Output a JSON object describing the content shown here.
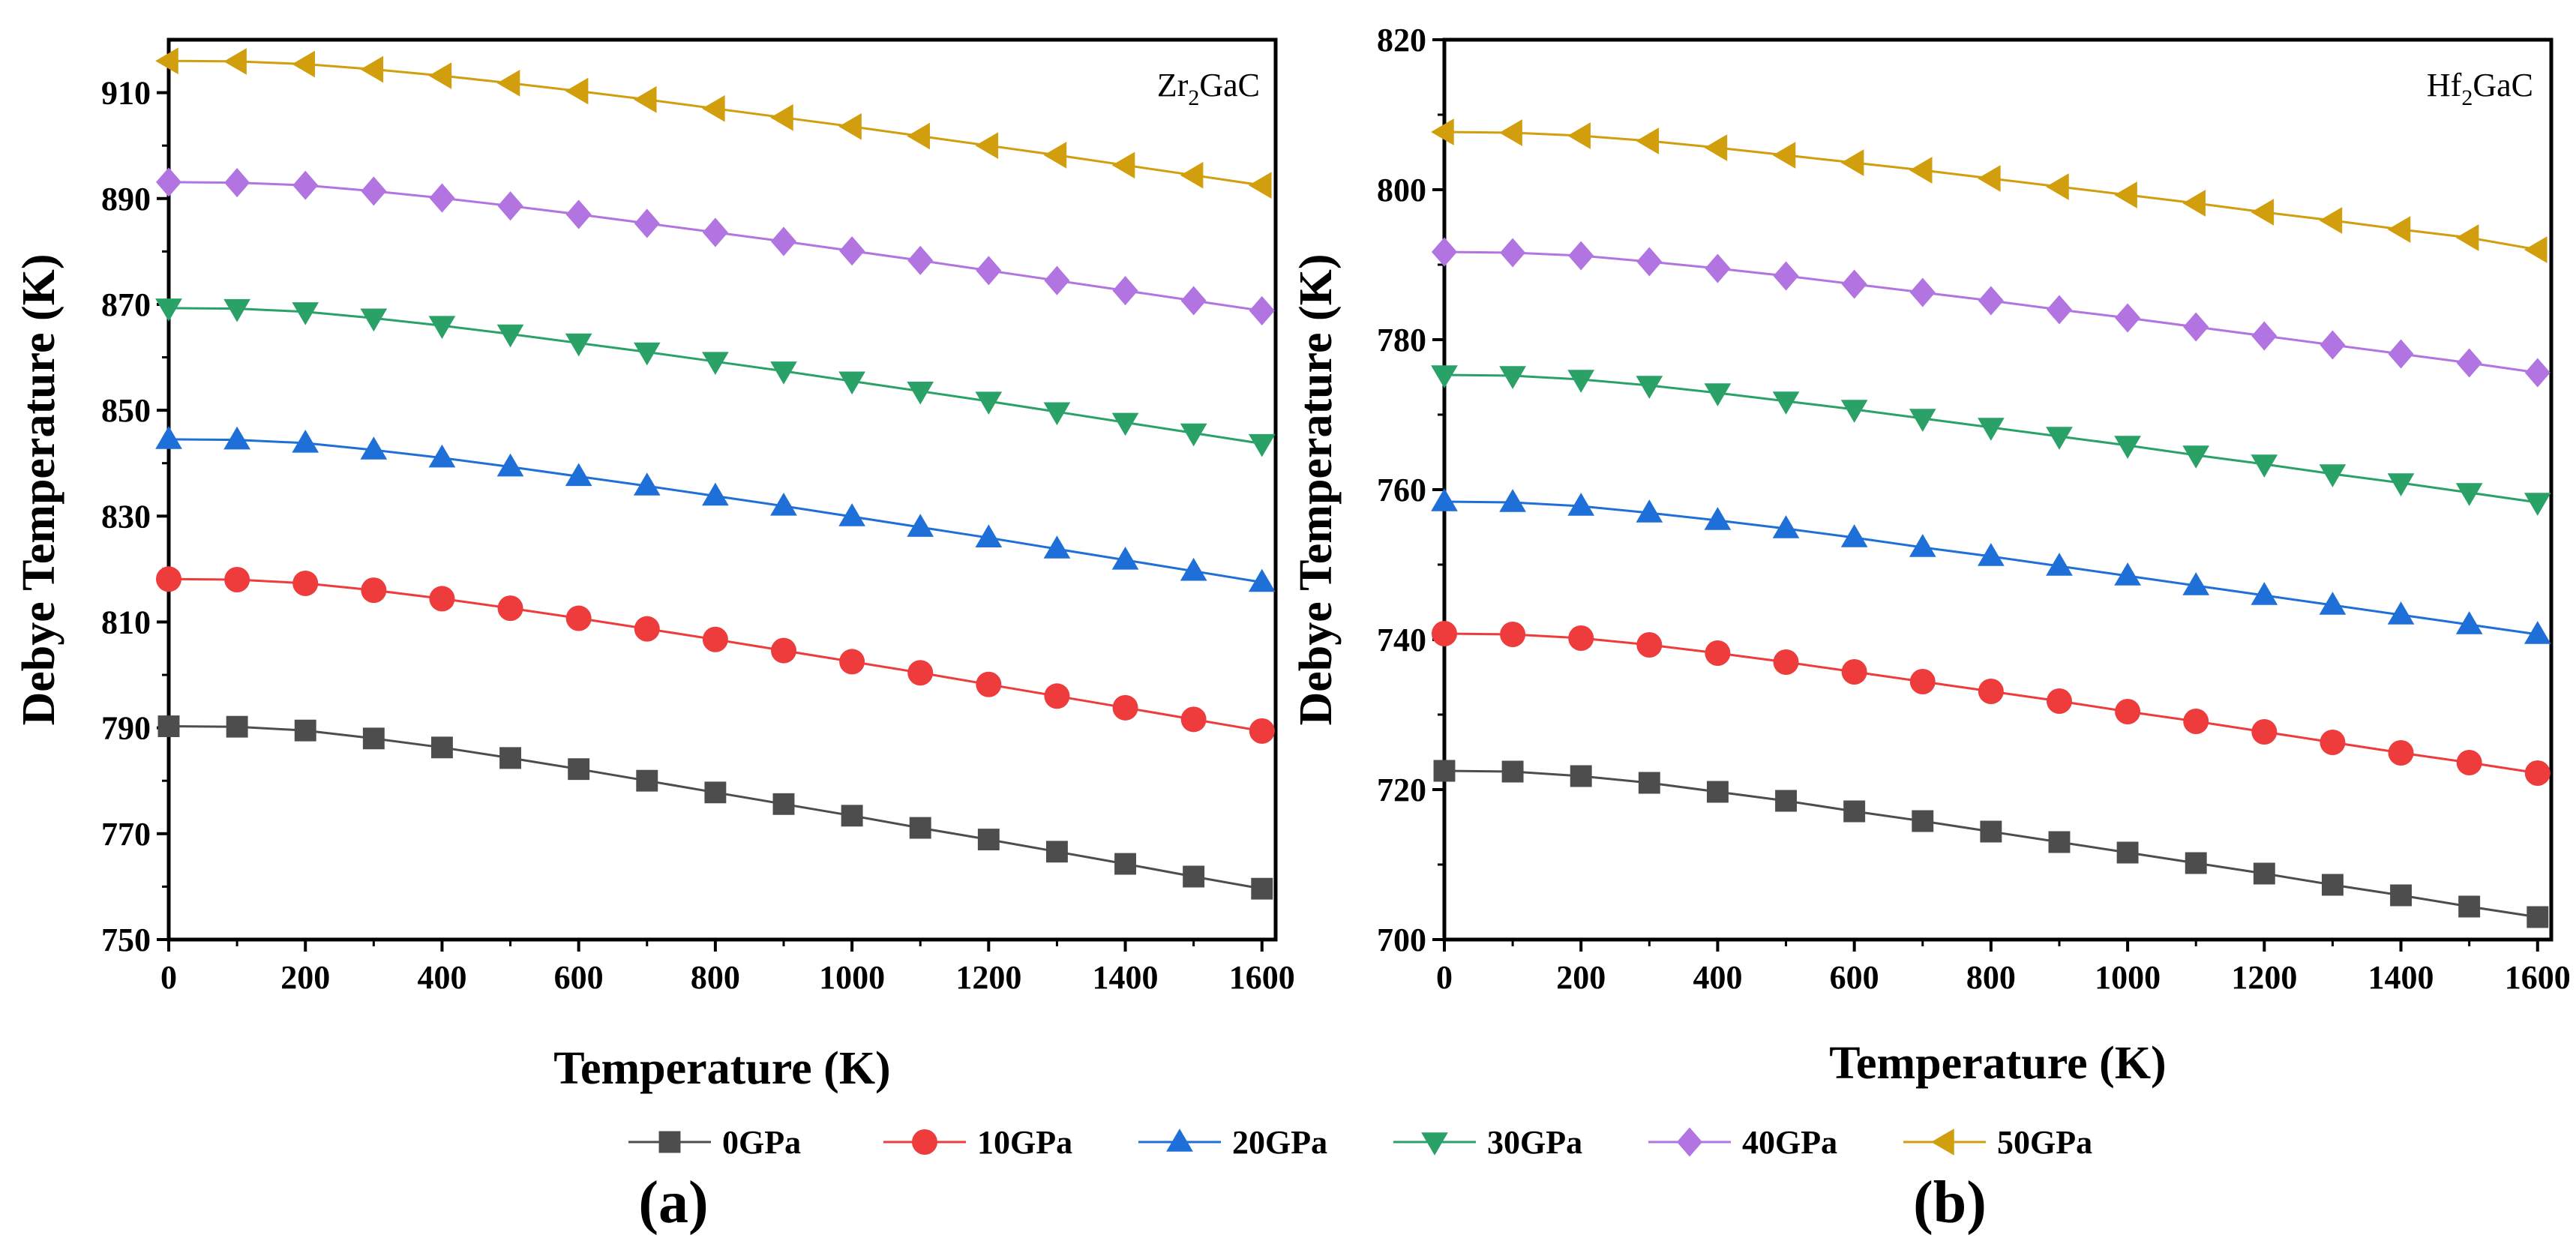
{
  "chart_data": [
    {
      "type": "line",
      "panel_label": "(a)",
      "compound": {
        "base": "Zr",
        "sub": "2",
        "rest": "GaC"
      },
      "xlabel": "Temperature (K)",
      "ylabel": "Debye Temperature (K)",
      "xlim": [
        0,
        1620
      ],
      "ylim": [
        750,
        920
      ],
      "xticks": [
        0,
        200,
        400,
        600,
        800,
        1000,
        1200,
        1400,
        1600
      ],
      "yticks": [
        750,
        770,
        790,
        810,
        830,
        850,
        870,
        890,
        910
      ],
      "x": [
        0,
        100,
        200,
        300,
        400,
        500,
        600,
        700,
        800,
        900,
        1000,
        1100,
        1200,
        1300,
        1400,
        1500,
        1600
      ],
      "series": [
        {
          "name": "0GPa",
          "values": [
            790.3,
            790.2,
            789.5,
            788.0,
            786.3,
            784.3,
            782.2,
            780.0,
            777.8,
            775.6,
            773.4,
            771.1,
            768.9,
            766.6,
            764.3,
            761.9,
            759.6
          ]
        },
        {
          "name": "10GPa",
          "values": [
            818.1,
            818.0,
            817.3,
            816.0,
            814.4,
            812.6,
            810.7,
            808.7,
            806.7,
            804.6,
            802.5,
            800.4,
            798.2,
            796.0,
            793.8,
            791.6,
            789.4
          ]
        },
        {
          "name": "20GPa",
          "values": [
            844.5,
            844.4,
            843.8,
            842.5,
            841.0,
            839.3,
            837.5,
            835.7,
            833.8,
            831.9,
            829.9,
            827.9,
            825.9,
            823.8,
            821.7,
            819.6,
            817.5
          ]
        },
        {
          "name": "30GPa",
          "values": [
            869.3,
            869.2,
            868.6,
            867.4,
            866.0,
            864.4,
            862.7,
            861.0,
            859.2,
            857.4,
            855.5,
            853.6,
            851.7,
            849.7,
            847.7,
            845.7,
            843.7
          ]
        },
        {
          "name": "40GPa",
          "values": [
            893.1,
            893.0,
            892.5,
            891.4,
            890.1,
            888.6,
            887.0,
            885.3,
            883.6,
            881.9,
            880.1,
            878.3,
            876.4,
            874.5,
            872.6,
            870.7,
            868.8
          ]
        },
        {
          "name": "50GPa",
          "values": [
            916.0,
            915.9,
            915.4,
            914.4,
            913.2,
            911.8,
            910.3,
            908.7,
            907.0,
            905.3,
            903.6,
            901.8,
            900.0,
            898.2,
            896.3,
            894.4,
            892.5
          ]
        }
      ]
    },
    {
      "type": "line",
      "panel_label": "(b)",
      "compound": {
        "base": "Hf",
        "sub": "2",
        "rest": "GaC"
      },
      "xlabel": "Temperature (K)",
      "ylabel": "Debye Temperature (K)",
      "xlim": [
        0,
        1620
      ],
      "ylim": [
        700,
        820
      ],
      "xticks": [
        0,
        200,
        400,
        600,
        800,
        1000,
        1200,
        1400,
        1600
      ],
      "yticks": [
        700,
        720,
        740,
        760,
        780,
        800,
        820
      ],
      "x": [
        0,
        100,
        200,
        300,
        400,
        500,
        600,
        700,
        800,
        900,
        1000,
        1100,
        1200,
        1300,
        1400,
        1500,
        1600
      ],
      "series": [
        {
          "name": "0GPa",
          "values": [
            722.5,
            722.4,
            721.8,
            720.9,
            719.7,
            718.5,
            717.1,
            715.8,
            714.4,
            713.0,
            711.6,
            710.2,
            708.8,
            707.3,
            705.9,
            704.4,
            703.0
          ]
        },
        {
          "name": "10GPa",
          "values": [
            740.8,
            740.7,
            740.2,
            739.3,
            738.2,
            737.0,
            735.7,
            734.4,
            733.1,
            731.8,
            730.4,
            729.1,
            727.7,
            726.3,
            724.9,
            723.6,
            722.2
          ]
        },
        {
          "name": "20GPa",
          "values": [
            758.4,
            758.3,
            757.8,
            756.9,
            755.9,
            754.8,
            753.6,
            752.3,
            751.1,
            749.8,
            748.5,
            747.2,
            745.9,
            744.6,
            743.3,
            742.0,
            740.7
          ]
        },
        {
          "name": "30GPa",
          "values": [
            775.3,
            775.2,
            774.7,
            773.9,
            772.9,
            771.8,
            770.7,
            769.5,
            768.3,
            767.1,
            765.9,
            764.6,
            763.4,
            762.1,
            760.9,
            759.6,
            758.3
          ]
        },
        {
          "name": "40GPa",
          "values": [
            791.7,
            791.6,
            791.2,
            790.4,
            789.5,
            788.5,
            787.4,
            786.3,
            785.2,
            784.0,
            782.9,
            781.7,
            780.5,
            779.3,
            778.1,
            776.9,
            775.6
          ]
        },
        {
          "name": "50GPa",
          "values": [
            807.7,
            807.6,
            807.2,
            806.5,
            805.6,
            804.6,
            803.6,
            802.6,
            801.5,
            800.4,
            799.3,
            798.2,
            797.0,
            795.9,
            794.7,
            793.6,
            792.0
          ]
        }
      ]
    }
  ],
  "legend": [
    {
      "label": "0GPa",
      "color": "#4d4d4d",
      "marker": "square"
    },
    {
      "label": "10GPa",
      "color": "#ee3b3b",
      "marker": "circle"
    },
    {
      "label": "20GPa",
      "color": "#1f6fd8",
      "marker": "triangle-up"
    },
    {
      "label": "30GPa",
      "color": "#2aa267",
      "marker": "triangle-down"
    },
    {
      "label": "40GPa",
      "color": "#b174e0",
      "marker": "diamond"
    },
    {
      "label": "50GPa",
      "color": "#d19e0d",
      "marker": "triangle-left"
    }
  ]
}
